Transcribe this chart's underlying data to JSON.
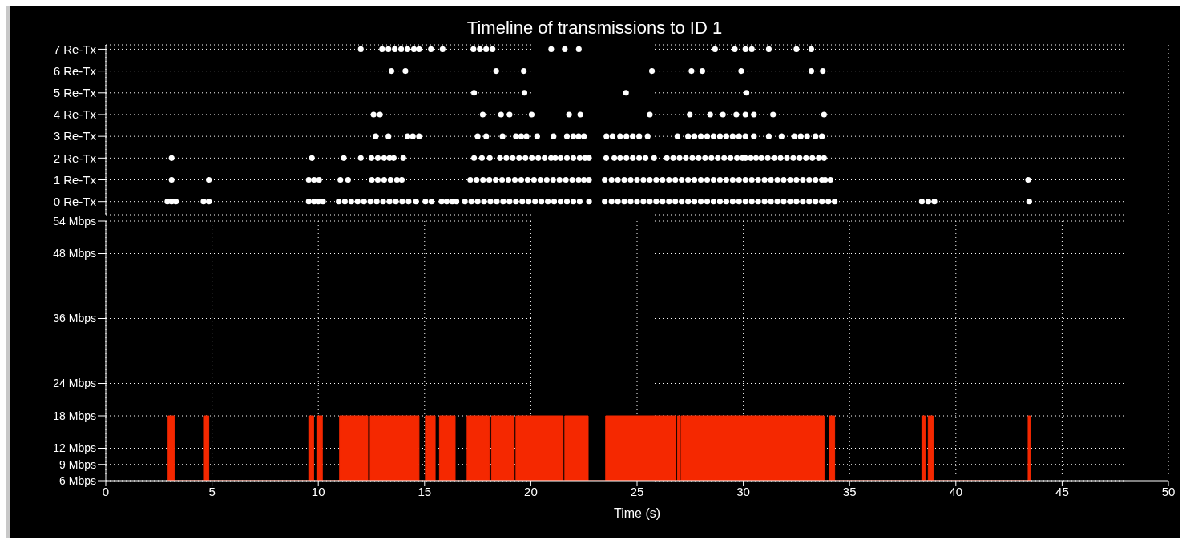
{
  "chart_data": [
    {
      "type": "scatter",
      "title": "Timeline of transmissions to ID 1",
      "xlim": [
        0,
        50
      ],
      "xticks": [
        0,
        5,
        10,
        15,
        20,
        25,
        30,
        35,
        40,
        45,
        50
      ],
      "tick_labels": "y",
      "ylim": [
        -0.6,
        7.2
      ],
      "yticks": [
        {
          "value": 0,
          "label": "0 Re-Tx"
        },
        {
          "value": 1,
          "label": "1 Re-Tx"
        },
        {
          "value": 2,
          "label": "2 Re-Tx"
        },
        {
          "value": 3,
          "label": "3 Re-Tx"
        },
        {
          "value": 4,
          "label": "4 Re-Tx"
        },
        {
          "value": 5,
          "label": "5 Re-Tx"
        },
        {
          "value": 6,
          "label": "6 Re-Tx"
        },
        {
          "value": 7,
          "label": "7 Re-Tx"
        }
      ],
      "grid": true,
      "marker": "circle",
      "series": [
        {
          "color": "#ffffff",
          "x": [
            2.9,
            3.1,
            3.3,
            4.6,
            4.85,
            9.55,
            9.8,
            10.0,
            10.22,
            10.96,
            11.25,
            11.55,
            11.85,
            12.15,
            12.45,
            12.75,
            13.05,
            13.35,
            13.65,
            13.95,
            14.25,
            14.6,
            15.04,
            15.33,
            15.8,
            16.04,
            16.3,
            16.5,
            16.9,
            17.2,
            17.5,
            17.8,
            18.1,
            18.4,
            18.7,
            19.0,
            19.3,
            19.6,
            19.9,
            20.2,
            20.5,
            20.8,
            21.1,
            21.4,
            21.7,
            22.0,
            22.3,
            22.74,
            23.48,
            23.8,
            24.1,
            24.4,
            24.7,
            25.0,
            25.3,
            25.6,
            25.9,
            26.2,
            26.5,
            26.8,
            27.1,
            27.4,
            27.7,
            28.0,
            28.3,
            28.6,
            28.9,
            29.2,
            29.5,
            29.8,
            30.1,
            30.4,
            30.7,
            31.0,
            31.3,
            31.6,
            31.9,
            32.2,
            32.5,
            32.8,
            33.1,
            33.4,
            33.7,
            34.0,
            34.3,
            38.4,
            38.7,
            38.99,
            43.45
          ],
          "values": [
            0,
            0,
            0,
            0,
            0,
            0,
            0,
            0,
            0,
            0,
            0,
            0,
            0,
            0,
            0,
            0,
            0,
            0,
            0,
            0,
            0,
            0,
            0,
            0,
            0,
            0,
            0,
            0,
            0,
            0,
            0,
            0,
            0,
            0,
            0,
            0,
            0,
            0,
            0,
            0,
            0,
            0,
            0,
            0,
            0,
            0,
            0,
            0,
            0,
            0,
            0,
            0,
            0,
            0,
            0,
            0,
            0,
            0,
            0,
            0,
            0,
            0,
            0,
            0,
            0,
            0,
            0,
            0,
            0,
            0,
            0,
            0,
            0,
            0,
            0,
            0,
            0,
            0,
            0,
            0,
            0,
            0,
            0,
            0,
            0,
            0,
            0,
            0,
            0
          ]
        },
        {
          "color": "#ffffff",
          "x": [
            3.1,
            4.85,
            9.55,
            9.8,
            10.04,
            11.04,
            11.4,
            12.52,
            12.8,
            13.1,
            13.4,
            13.7,
            13.93,
            17.15,
            17.45,
            17.75,
            18.05,
            18.35,
            18.65,
            18.95,
            19.25,
            19.55,
            19.85,
            20.15,
            20.45,
            20.75,
            21.05,
            21.35,
            21.65,
            21.95,
            22.25,
            22.5,
            22.74,
            23.48,
            23.8,
            24.1,
            24.4,
            24.7,
            25.0,
            25.3,
            25.6,
            25.9,
            26.2,
            26.5,
            26.8,
            27.1,
            27.4,
            27.7,
            28.0,
            28.3,
            28.6,
            28.9,
            29.2,
            29.5,
            29.8,
            30.1,
            30.4,
            30.7,
            31.0,
            31.3,
            31.6,
            31.9,
            32.2,
            32.5,
            32.8,
            33.1,
            33.4,
            33.7,
            33.85,
            34.1,
            43.4
          ],
          "values": [
            1,
            1,
            1,
            1,
            1,
            1,
            1,
            1,
            1,
            1,
            1,
            1,
            1,
            1,
            1,
            1,
            1,
            1,
            1,
            1,
            1,
            1,
            1,
            1,
            1,
            1,
            1,
            1,
            1,
            1,
            1,
            1,
            1,
            1,
            1,
            1,
            1,
            1,
            1,
            1,
            1,
            1,
            1,
            1,
            1,
            1,
            1,
            1,
            1,
            1,
            1,
            1,
            1,
            1,
            1,
            1,
            1,
            1,
            1,
            1,
            1,
            1,
            1,
            1,
            1,
            1,
            1,
            1,
            1,
            1,
            1
          ]
        },
        {
          "color": "#ffffff",
          "x": [
            3.1,
            9.7,
            11.2,
            12.0,
            12.5,
            12.8,
            13.1,
            13.35,
            13.55,
            14.0,
            17.33,
            17.7,
            18.07,
            18.55,
            18.85,
            19.15,
            19.45,
            19.75,
            20.05,
            20.35,
            20.65,
            20.95,
            21.15,
            21.4,
            21.7,
            22.0,
            22.3,
            22.55,
            22.74,
            23.55,
            23.93,
            24.2,
            24.5,
            24.8,
            25.1,
            25.4,
            25.8,
            26.4,
            26.7,
            27.0,
            27.3,
            27.6,
            27.9,
            28.2,
            28.5,
            28.8,
            29.1,
            29.4,
            29.7,
            29.96,
            30.1,
            30.35,
            30.6,
            30.85,
            31.15,
            31.45,
            31.75,
            32.05,
            32.35,
            32.65,
            32.95,
            33.25,
            33.55,
            33.8
          ],
          "values": [
            2,
            2,
            2,
            2,
            2,
            2,
            2,
            2,
            2,
            2,
            2,
            2,
            2,
            2,
            2,
            2,
            2,
            2,
            2,
            2,
            2,
            2,
            2,
            2,
            2,
            2,
            2,
            2,
            2,
            2,
            2,
            2,
            2,
            2,
            2,
            2,
            2,
            2,
            2,
            2,
            2,
            2,
            2,
            2,
            2,
            2,
            2,
            2,
            2,
            2,
            2,
            2,
            2,
            2,
            2,
            2,
            2,
            2,
            2,
            2,
            2,
            2,
            2,
            2
          ]
        },
        {
          "color": "#ffffff",
          "x": [
            12.7,
            13.3,
            14.2,
            14.45,
            14.74,
            17.5,
            17.9,
            18.67,
            19.3,
            19.55,
            19.8,
            20.3,
            21.07,
            21.7,
            22.0,
            22.25,
            22.5,
            23.56,
            23.85,
            24.2,
            24.5,
            24.8,
            25.1,
            25.5,
            26.9,
            27.4,
            27.7,
            28.0,
            28.3,
            28.6,
            28.9,
            29.2,
            29.5,
            29.8,
            30.1,
            30.5,
            31.2,
            31.8,
            32.4,
            32.7,
            33.0,
            33.4,
            33.7
          ],
          "values": [
            3,
            3,
            3,
            3,
            3,
            3,
            3,
            3,
            3,
            3,
            3,
            3,
            3,
            3,
            3,
            3,
            3,
            3,
            3,
            3,
            3,
            3,
            3,
            3,
            3,
            3,
            3,
            3,
            3,
            3,
            3,
            3,
            3,
            3,
            3,
            3,
            3,
            3,
            3,
            3,
            3,
            3,
            3
          ]
        },
        {
          "color": "#ffffff",
          "x": [
            12.6,
            12.9,
            17.74,
            18.6,
            19.0,
            20.04,
            21.8,
            22.33,
            25.6,
            27.48,
            28.44,
            29.04,
            29.67,
            30.1,
            30.5,
            31.4,
            33.8
          ],
          "values": [
            4,
            4,
            4,
            4,
            4,
            4,
            4,
            4,
            4,
            4,
            4,
            4,
            4,
            4,
            4,
            4,
            4
          ]
        },
        {
          "color": "#ffffff",
          "x": [
            17.33,
            19.7,
            24.48,
            30.15
          ],
          "values": [
            5,
            5,
            5,
            5
          ]
        },
        {
          "color": "#ffffff",
          "x": [
            13.44,
            14.1,
            18.37,
            19.67,
            25.7,
            27.56,
            28.07,
            29.9,
            33.2,
            33.74
          ],
          "values": [
            6,
            6,
            6,
            6,
            6,
            6,
            6,
            6,
            6,
            6
          ]
        },
        {
          "color": "#ffffff",
          "x": [
            12.0,
            13.0,
            13.3,
            13.6,
            13.9,
            14.2,
            14.5,
            14.74,
            15.3,
            15.85,
            17.3,
            17.6,
            17.9,
            18.2,
            20.96,
            21.6,
            22.26,
            28.67,
            29.6,
            30.1,
            30.4,
            31.2,
            32.5,
            33.2
          ],
          "values": [
            7,
            7,
            7,
            7,
            7,
            7,
            7,
            7,
            7,
            7,
            7,
            7,
            7,
            7,
            7,
            7,
            7,
            7,
            7,
            7,
            7,
            7,
            7,
            7
          ]
        }
      ]
    },
    {
      "type": "area",
      "xlabel": "Time (s)",
      "xlim": [
        0,
        50
      ],
      "xticks": [
        0,
        5,
        10,
        15,
        20,
        25,
        30,
        35,
        40,
        45,
        50
      ],
      "ylim": [
        6,
        54
      ],
      "yticks": [
        {
          "value": 6,
          "label": "6 Mbps"
        },
        {
          "value": 9,
          "label": "9 Mbps"
        },
        {
          "value": 12,
          "label": "12 Mbps"
        },
        {
          "value": 18,
          "label": "18 Mbps"
        },
        {
          "value": 24,
          "label": "24 Mbps"
        },
        {
          "value": 36,
          "label": "36 Mbps"
        },
        {
          "value": 48,
          "label": "48 Mbps"
        },
        {
          "value": 54,
          "label": "54 Mbps"
        }
      ],
      "grid": true,
      "series": [
        {
          "color": "#f52800",
          "x": [
            2.93,
            2.93,
            3.22,
            3.22,
            4.6,
            4.6,
            4.85,
            4.85,
            9.55,
            9.55,
            9.78,
            9.78,
            9.93,
            9.93,
            10.19,
            10.19,
            11.0,
            11.0,
            12.33,
            12.33,
            12.44,
            12.44,
            14.74,
            14.74,
            15.04,
            15.04,
            15.5,
            15.5,
            15.7,
            15.7,
            16.44,
            16.44,
            17.0,
            17.0,
            18.04,
            18.04,
            18.15,
            18.15,
            19.22,
            19.22,
            19.3,
            19.3,
            21.52,
            21.52,
            21.6,
            21.6,
            22.7,
            22.7,
            23.52,
            23.52,
            26.81,
            26.81,
            26.9,
            26.9,
            27.0,
            27.0,
            27.07,
            27.07,
            33.8,
            33.8,
            34.04,
            34.04,
            34.3,
            34.3,
            38.4,
            38.4,
            38.56,
            38.56,
            38.7,
            38.7,
            38.93,
            38.93,
            43.4,
            43.4,
            43.5,
            43.5
          ],
          "values": [
            6,
            18,
            18,
            6,
            6,
            18,
            18,
            6,
            6,
            18,
            18,
            6,
            6,
            18,
            18,
            6,
            6,
            18,
            18,
            6,
            6,
            18,
            18,
            6,
            6,
            18,
            18,
            6,
            6,
            18,
            18,
            6,
            6,
            18,
            18,
            6,
            6,
            18,
            18,
            6,
            6,
            18,
            18,
            6,
            6,
            18,
            18,
            6,
            6,
            18,
            18,
            6,
            6,
            18,
            18,
            6,
            6,
            18,
            18,
            6,
            6,
            18,
            18,
            6,
            6,
            18,
            18,
            6,
            6,
            18,
            18,
            6,
            6,
            18,
            18,
            6
          ]
        }
      ]
    }
  ]
}
